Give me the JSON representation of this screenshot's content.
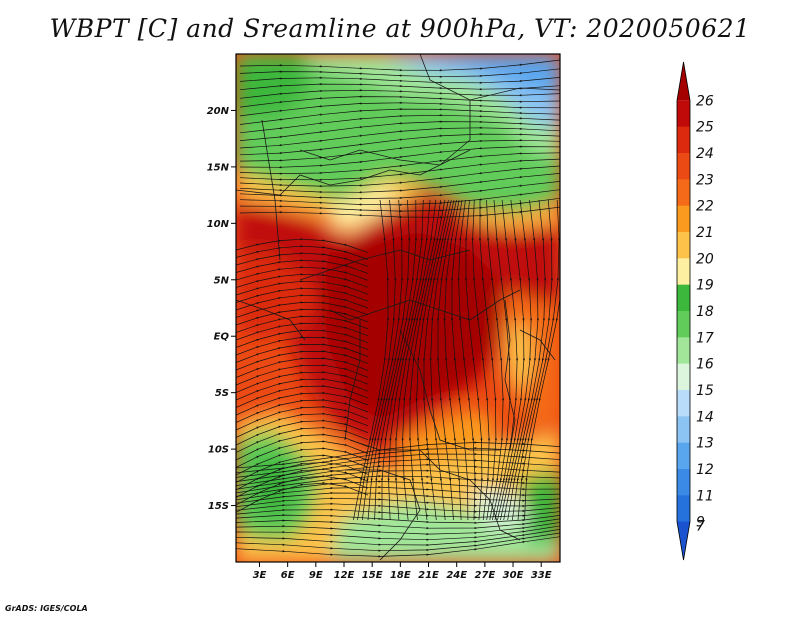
{
  "title": "WBPT [C] and Sreamline at 900hPa, VT: 2020050621",
  "credit": "GrADS: IGES/COLA",
  "map": {
    "lat_ticks": [
      {
        "label": "20N",
        "lat": 20
      },
      {
        "label": "15N",
        "lat": 15
      },
      {
        "label": "10N",
        "lat": 10
      },
      {
        "label": "5N",
        "lat": 5
      },
      {
        "label": "EQ",
        "lat": 0
      },
      {
        "label": "5S",
        "lat": -5
      },
      {
        "label": "10S",
        "lat": -10
      },
      {
        "label": "15S",
        "lat": -15
      }
    ],
    "lon_ticks": [
      {
        "label": "3E",
        "lon": 3
      },
      {
        "label": "6E",
        "lon": 6
      },
      {
        "label": "9E",
        "lon": 9
      },
      {
        "label": "12E",
        "lon": 12
      },
      {
        "label": "15E",
        "lon": 15
      },
      {
        "label": "18E",
        "lon": 18
      },
      {
        "label": "21E",
        "lon": 21
      },
      {
        "label": "24E",
        "lon": 24
      },
      {
        "label": "27E",
        "lon": 27
      },
      {
        "label": "30E",
        "lon": 30
      },
      {
        "label": "33E",
        "lon": 33
      }
    ],
    "lat_range": [
      -20,
      25
    ],
    "lon_range": [
      0.5,
      35
    ]
  },
  "colorbar": {
    "levels": [
      {
        "label": "26",
        "color": "#a50000"
      },
      {
        "label": "25",
        "color": "#c00a0a"
      },
      {
        "label": "24",
        "color": "#dc2a0e"
      },
      {
        "label": "23",
        "color": "#ec4a14"
      },
      {
        "label": "22",
        "color": "#f46a18"
      },
      {
        "label": "21",
        "color": "#fa9a1e"
      },
      {
        "label": "20",
        "color": "#fcc24a"
      },
      {
        "label": "19",
        "color": "#fdf0a0"
      },
      {
        "label": "18",
        "color": "#3cb83c"
      },
      {
        "label": "17",
        "color": "#62cc5a"
      },
      {
        "label": "16",
        "color": "#a2e69a"
      },
      {
        "label": "15",
        "color": "#dcf6de"
      },
      {
        "label": "14",
        "color": "#b8dcfa"
      },
      {
        "label": "13",
        "color": "#8cc4f4"
      },
      {
        "label": "12",
        "color": "#5aa6ee"
      },
      {
        "label": "11",
        "color": "#3a8ae6"
      },
      {
        "label": "9",
        "color": "#2672dc"
      },
      {
        "label": "7",
        "color": "#1a52d0"
      }
    ]
  }
}
